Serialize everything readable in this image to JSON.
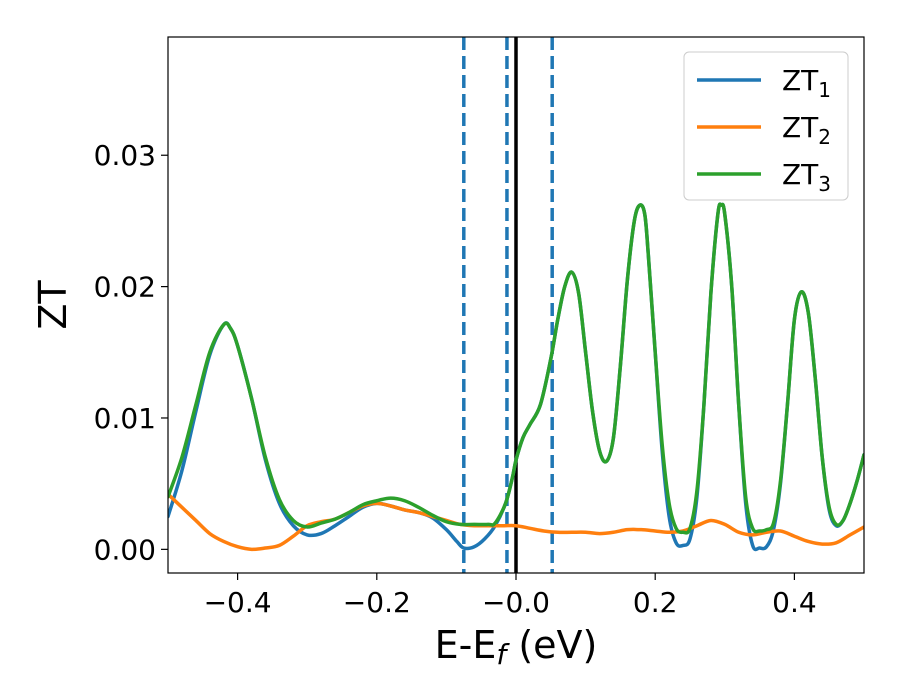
{
  "chart_data": {
    "type": "line",
    "title": "",
    "xlabel": {
      "main": "E-E",
      "sub": "f",
      "suffix": " (eV)"
    },
    "ylabel": "ZT",
    "xlim": [
      -0.5,
      0.5
    ],
    "ylim": [
      -0.0018,
      0.039
    ],
    "xticks": [
      {
        "value": -0.4,
        "label": "−0.4"
      },
      {
        "value": -0.2,
        "label": "−0.2"
      },
      {
        "value": 0.0,
        "label": "−0.0"
      },
      {
        "value": 0.2,
        "label": "0.2"
      },
      {
        "value": 0.4,
        "label": "0.4"
      }
    ],
    "yticks": [
      {
        "value": 0.0,
        "label": "0.00"
      },
      {
        "value": 0.01,
        "label": "0.01"
      },
      {
        "value": 0.02,
        "label": "0.02"
      },
      {
        "value": 0.03,
        "label": "0.03"
      }
    ],
    "grid": false,
    "legend_position": "top-right",
    "vlines": [
      {
        "x": -0.075,
        "style": "dashed",
        "color": "#1f77b4"
      },
      {
        "x": -0.013,
        "style": "dashed",
        "color": "#1f77b4"
      },
      {
        "x": 0.052,
        "style": "dashed",
        "color": "#1f77b4"
      },
      {
        "x": 0.0,
        "style": "solid",
        "color": "#000000"
      }
    ],
    "series": [
      {
        "name": "ZT",
        "name_sub": "1",
        "color": "#1f77b4",
        "points": [
          [
            -0.5,
            0.0025
          ],
          [
            -0.48,
            0.006
          ],
          [
            -0.46,
            0.0105
          ],
          [
            -0.44,
            0.0148
          ],
          [
            -0.42,
            0.0171
          ],
          [
            -0.41,
            0.0168
          ],
          [
            -0.4,
            0.0155
          ],
          [
            -0.38,
            0.0115
          ],
          [
            -0.36,
            0.0068
          ],
          [
            -0.34,
            0.0035
          ],
          [
            -0.32,
            0.0018
          ],
          [
            -0.3,
            0.0011
          ],
          [
            -0.28,
            0.0012
          ],
          [
            -0.26,
            0.0018
          ],
          [
            -0.24,
            0.0025
          ],
          [
            -0.22,
            0.0032
          ],
          [
            -0.2,
            0.0035
          ],
          [
            -0.18,
            0.0033
          ],
          [
            -0.16,
            0.003
          ],
          [
            -0.14,
            0.0028
          ],
          [
            -0.12,
            0.0024
          ],
          [
            -0.1,
            0.0015
          ],
          [
            -0.085,
            0.0006
          ],
          [
            -0.075,
            0.0001
          ],
          [
            -0.06,
            0.0002
          ],
          [
            -0.045,
            0.0008
          ],
          [
            -0.03,
            0.0018
          ],
          [
            -0.015,
            0.0035
          ],
          [
            -0.005,
            0.0055
          ],
          [
            0.0,
            0.0068
          ],
          [
            0.01,
            0.0085
          ],
          [
            0.02,
            0.0095
          ],
          [
            0.035,
            0.011
          ],
          [
            0.05,
            0.0145
          ],
          [
            0.06,
            0.0175
          ],
          [
            0.07,
            0.02
          ],
          [
            0.08,
            0.0211
          ],
          [
            0.09,
            0.0195
          ],
          [
            0.1,
            0.015
          ],
          [
            0.11,
            0.0105
          ],
          [
            0.12,
            0.0075
          ],
          [
            0.13,
            0.0067
          ],
          [
            0.14,
            0.0085
          ],
          [
            0.15,
            0.014
          ],
          [
            0.16,
            0.0205
          ],
          [
            0.17,
            0.025
          ],
          [
            0.178,
            0.0262
          ],
          [
            0.185,
            0.0255
          ],
          [
            0.19,
            0.0225
          ],
          [
            0.2,
            0.015
          ],
          [
            0.21,
            0.0075
          ],
          [
            0.22,
            0.0025
          ],
          [
            0.23,
            0.0005
          ],
          [
            0.24,
            0.0003
          ],
          [
            0.25,
            0.0008
          ],
          [
            0.26,
            0.004
          ],
          [
            0.27,
            0.011
          ],
          [
            0.28,
            0.0195
          ],
          [
            0.29,
            0.0255
          ],
          [
            0.295,
            0.0262
          ],
          [
            0.3,
            0.0255
          ],
          [
            0.31,
            0.02
          ],
          [
            0.32,
            0.011
          ],
          [
            0.33,
            0.0035
          ],
          [
            0.34,
            0.0003
          ],
          [
            0.35,
            0.0001
          ],
          [
            0.36,
            0.0002
          ],
          [
            0.37,
            0.0015
          ],
          [
            0.38,
            0.005
          ],
          [
            0.39,
            0.011
          ],
          [
            0.4,
            0.0175
          ],
          [
            0.41,
            0.0196
          ],
          [
            0.42,
            0.018
          ],
          [
            0.43,
            0.013
          ],
          [
            0.44,
            0.007
          ],
          [
            0.45,
            0.003
          ],
          [
            0.46,
            0.0018
          ],
          [
            0.47,
            0.0022
          ],
          [
            0.48,
            0.0035
          ],
          [
            0.49,
            0.0052
          ],
          [
            0.5,
            0.0072
          ]
        ]
      },
      {
        "name": "ZT",
        "name_sub": "2",
        "color": "#ff7f0e",
        "points": [
          [
            -0.5,
            0.0042
          ],
          [
            -0.48,
            0.0032
          ],
          [
            -0.46,
            0.0022
          ],
          [
            -0.44,
            0.0012
          ],
          [
            -0.42,
            0.0006
          ],
          [
            -0.4,
            0.0002
          ],
          [
            -0.38,
            0.0
          ],
          [
            -0.36,
            0.0001
          ],
          [
            -0.34,
            0.0003
          ],
          [
            -0.32,
            0.001
          ],
          [
            -0.3,
            0.0018
          ],
          [
            -0.28,
            0.0021
          ],
          [
            -0.26,
            0.0023
          ],
          [
            -0.24,
            0.0028
          ],
          [
            -0.22,
            0.0033
          ],
          [
            -0.2,
            0.0035
          ],
          [
            -0.18,
            0.0033
          ],
          [
            -0.16,
            0.003
          ],
          [
            -0.14,
            0.0028
          ],
          [
            -0.12,
            0.0025
          ],
          [
            -0.1,
            0.0022
          ],
          [
            -0.08,
            0.0019
          ],
          [
            -0.06,
            0.0018
          ],
          [
            -0.04,
            0.0018
          ],
          [
            -0.02,
            0.0018
          ],
          [
            0.0,
            0.0018
          ],
          [
            0.02,
            0.0016
          ],
          [
            0.04,
            0.0014
          ],
          [
            0.06,
            0.0013
          ],
          [
            0.08,
            0.0013
          ],
          [
            0.1,
            0.0013
          ],
          [
            0.12,
            0.0012
          ],
          [
            0.14,
            0.0013
          ],
          [
            0.16,
            0.0015
          ],
          [
            0.18,
            0.0015
          ],
          [
            0.2,
            0.0014
          ],
          [
            0.22,
            0.0013
          ],
          [
            0.24,
            0.0014
          ],
          [
            0.26,
            0.0018
          ],
          [
            0.28,
            0.0022
          ],
          [
            0.3,
            0.0019
          ],
          [
            0.32,
            0.0013
          ],
          [
            0.34,
            0.0011
          ],
          [
            0.36,
            0.0013
          ],
          [
            0.38,
            0.0014
          ],
          [
            0.4,
            0.001
          ],
          [
            0.42,
            0.0006
          ],
          [
            0.44,
            0.0004
          ],
          [
            0.46,
            0.0005
          ],
          [
            0.48,
            0.0011
          ],
          [
            0.5,
            0.0017
          ]
        ]
      },
      {
        "name": "ZT",
        "name_sub": "3",
        "color": "#2ca02c",
        "points": [
          [
            -0.5,
            0.004
          ],
          [
            -0.48,
            0.007
          ],
          [
            -0.46,
            0.011
          ],
          [
            -0.44,
            0.015
          ],
          [
            -0.42,
            0.0171
          ],
          [
            -0.41,
            0.0168
          ],
          [
            -0.4,
            0.0155
          ],
          [
            -0.38,
            0.0115
          ],
          [
            -0.36,
            0.007
          ],
          [
            -0.34,
            0.0038
          ],
          [
            -0.32,
            0.0022
          ],
          [
            -0.3,
            0.0017
          ],
          [
            -0.28,
            0.002
          ],
          [
            -0.26,
            0.0023
          ],
          [
            -0.24,
            0.0028
          ],
          [
            -0.22,
            0.0034
          ],
          [
            -0.2,
            0.0037
          ],
          [
            -0.18,
            0.0039
          ],
          [
            -0.16,
            0.0037
          ],
          [
            -0.14,
            0.0032
          ],
          [
            -0.12,
            0.0026
          ],
          [
            -0.1,
            0.0021
          ],
          [
            -0.08,
            0.0019
          ],
          [
            -0.06,
            0.0019
          ],
          [
            -0.04,
            0.0019
          ],
          [
            -0.03,
            0.002
          ],
          [
            -0.015,
            0.0035
          ],
          [
            -0.005,
            0.0055
          ],
          [
            0.0,
            0.0068
          ],
          [
            0.01,
            0.0085
          ],
          [
            0.02,
            0.0095
          ],
          [
            0.035,
            0.011
          ],
          [
            0.05,
            0.0145
          ],
          [
            0.06,
            0.0175
          ],
          [
            0.07,
            0.02
          ],
          [
            0.08,
            0.0211
          ],
          [
            0.09,
            0.0195
          ],
          [
            0.1,
            0.015
          ],
          [
            0.11,
            0.0105
          ],
          [
            0.12,
            0.0075
          ],
          [
            0.13,
            0.0067
          ],
          [
            0.14,
            0.0085
          ],
          [
            0.15,
            0.014
          ],
          [
            0.16,
            0.0205
          ],
          [
            0.17,
            0.025
          ],
          [
            0.178,
            0.0262
          ],
          [
            0.185,
            0.0255
          ],
          [
            0.19,
            0.0225
          ],
          [
            0.2,
            0.015
          ],
          [
            0.21,
            0.008
          ],
          [
            0.22,
            0.0035
          ],
          [
            0.23,
            0.0016
          ],
          [
            0.24,
            0.0013
          ],
          [
            0.25,
            0.0016
          ],
          [
            0.26,
            0.0045
          ],
          [
            0.27,
            0.011
          ],
          [
            0.28,
            0.0195
          ],
          [
            0.29,
            0.0255
          ],
          [
            0.295,
            0.0262
          ],
          [
            0.3,
            0.0255
          ],
          [
            0.31,
            0.02
          ],
          [
            0.32,
            0.011
          ],
          [
            0.33,
            0.004
          ],
          [
            0.34,
            0.0016
          ],
          [
            0.35,
            0.0014
          ],
          [
            0.36,
            0.0015
          ],
          [
            0.37,
            0.002
          ],
          [
            0.38,
            0.0052
          ],
          [
            0.39,
            0.011
          ],
          [
            0.4,
            0.0175
          ],
          [
            0.41,
            0.0196
          ],
          [
            0.42,
            0.018
          ],
          [
            0.43,
            0.013
          ],
          [
            0.44,
            0.007
          ],
          [
            0.45,
            0.0032
          ],
          [
            0.46,
            0.0019
          ],
          [
            0.47,
            0.0022
          ],
          [
            0.48,
            0.0035
          ],
          [
            0.49,
            0.0052
          ],
          [
            0.5,
            0.0072
          ]
        ]
      }
    ]
  }
}
